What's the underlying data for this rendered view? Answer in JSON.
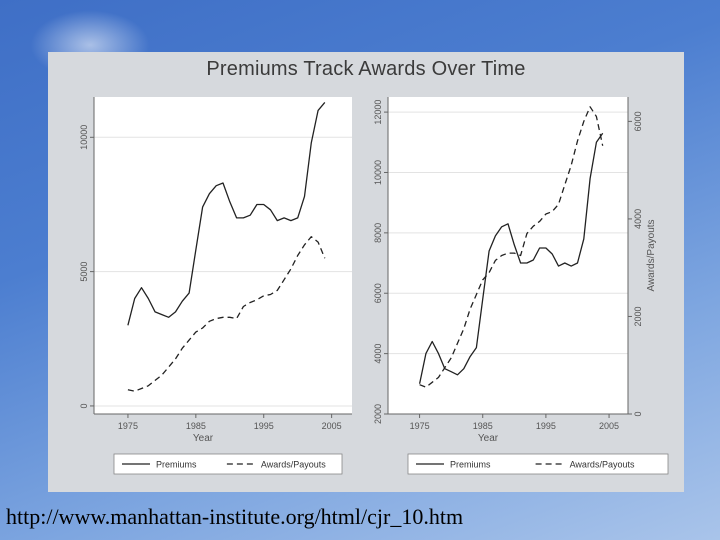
{
  "slide": {
    "title": "Premiums Track Awards Over Time",
    "source_url": "http://www.manhattan-institute.org/html/cjr_10.htm"
  },
  "chart_data": [
    {
      "type": "line",
      "xlabel": "Year",
      "xlim": [
        1970,
        2008
      ],
      "xticks": [
        1975,
        1985,
        1995,
        2005
      ],
      "ylim": [
        -300,
        11500
      ],
      "yticks": [
        0,
        5000,
        10000
      ],
      "grid": true,
      "legend_position": "bottom",
      "series": [
        {
          "name": "Premiums",
          "style": "solid",
          "x": [
            1975,
            1976,
            1977,
            1978,
            1979,
            1980,
            1981,
            1982,
            1983,
            1984,
            1985,
            1986,
            1987,
            1988,
            1989,
            1990,
            1991,
            1992,
            1993,
            1994,
            1995,
            1996,
            1997,
            1998,
            1999,
            2000,
            2001,
            2002,
            2003,
            2004
          ],
          "values": [
            3000,
            4000,
            4400,
            4000,
            3500,
            3400,
            3300,
            3500,
            3900,
            4200,
            5800,
            7400,
            7900,
            8200,
            8300,
            7600,
            7000,
            7000,
            7100,
            7500,
            7500,
            7300,
            6900,
            7000,
            6900,
            7000,
            7800,
            9800,
            11000,
            11300
          ]
        },
        {
          "name": "Awards/Payouts",
          "style": "dashed",
          "x": [
            1975,
            1976,
            1977,
            1978,
            1979,
            1980,
            1981,
            1982,
            1983,
            1984,
            1985,
            1986,
            1987,
            1988,
            1989,
            1990,
            1991,
            1992,
            1993,
            1994,
            1995,
            1996,
            1997,
            1998,
            1999,
            2000,
            2001,
            2002,
            2003,
            2004
          ],
          "values": [
            600,
            550,
            650,
            750,
            950,
            1150,
            1450,
            1750,
            2150,
            2450,
            2750,
            2900,
            3150,
            3250,
            3300,
            3300,
            3250,
            3700,
            3850,
            3950,
            4100,
            4150,
            4300,
            4700,
            5100,
            5600,
            6000,
            6300,
            6100,
            5500
          ]
        }
      ]
    },
    {
      "type": "line",
      "xlabel": "Year",
      "ylabel_right": "Awards/Payouts",
      "xlim": [
        1970,
        2008
      ],
      "xticks": [
        1975,
        1985,
        1995,
        2005
      ],
      "ylim_left": [
        2000,
        12500
      ],
      "yticks_left": [
        2000,
        4000,
        6000,
        8000,
        10000,
        12000
      ],
      "ylim_right": [
        0,
        6500
      ],
      "yticks_right": [
        0,
        2000,
        4000,
        6000
      ],
      "grid": true,
      "legend_position": "bottom",
      "series": [
        {
          "name": "Premiums",
          "style": "solid",
          "axis": "left",
          "x": [
            1975,
            1976,
            1977,
            1978,
            1979,
            1980,
            1981,
            1982,
            1983,
            1984,
            1985,
            1986,
            1987,
            1988,
            1989,
            1990,
            1991,
            1992,
            1993,
            1994,
            1995,
            1996,
            1997,
            1998,
            1999,
            2000,
            2001,
            2002,
            2003,
            2004
          ],
          "values": [
            3000,
            4000,
            4400,
            4000,
            3500,
            3400,
            3300,
            3500,
            3900,
            4200,
            5800,
            7400,
            7900,
            8200,
            8300,
            7600,
            7000,
            7000,
            7100,
            7500,
            7500,
            7300,
            6900,
            7000,
            6900,
            7000,
            7800,
            9800,
            11000,
            11300
          ]
        },
        {
          "name": "Awards/Payouts",
          "style": "dashed",
          "axis": "right",
          "x": [
            1975,
            1976,
            1977,
            1978,
            1979,
            1980,
            1981,
            1982,
            1983,
            1984,
            1985,
            1986,
            1987,
            1988,
            1989,
            1990,
            1991,
            1992,
            1993,
            1994,
            1995,
            1996,
            1997,
            1998,
            1999,
            2000,
            2001,
            2002,
            2003,
            2004
          ],
          "values": [
            600,
            550,
            650,
            750,
            950,
            1150,
            1450,
            1750,
            2150,
            2450,
            2750,
            2900,
            3150,
            3250,
            3300,
            3300,
            3250,
            3700,
            3850,
            3950,
            4100,
            4150,
            4300,
            4700,
            5100,
            5600,
            6000,
            6300,
            6100,
            5500
          ]
        }
      ]
    }
  ]
}
